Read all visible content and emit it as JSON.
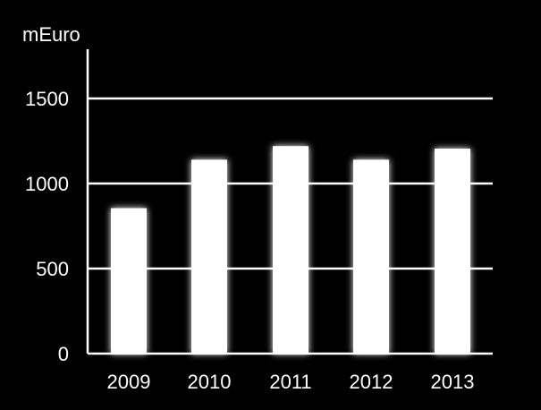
{
  "chart_data": {
    "type": "bar",
    "categories": [
      "2009",
      "2010",
      "2011",
      "2012",
      "2013"
    ],
    "values": [
      855,
      1140,
      1220,
      1140,
      1205
    ],
    "ylabel": "mEuro",
    "ylim": [
      0,
      1800
    ],
    "yticks": [
      0,
      500,
      1000,
      1500
    ],
    "ytick_labels": [
      "0",
      "500",
      "1000",
      "1500"
    ],
    "grid": true,
    "colors": {
      "background": "#000000",
      "bar": "#ffffff",
      "grid": "#ffffff",
      "axis": "#ffffff",
      "text": "#ffffff"
    }
  }
}
